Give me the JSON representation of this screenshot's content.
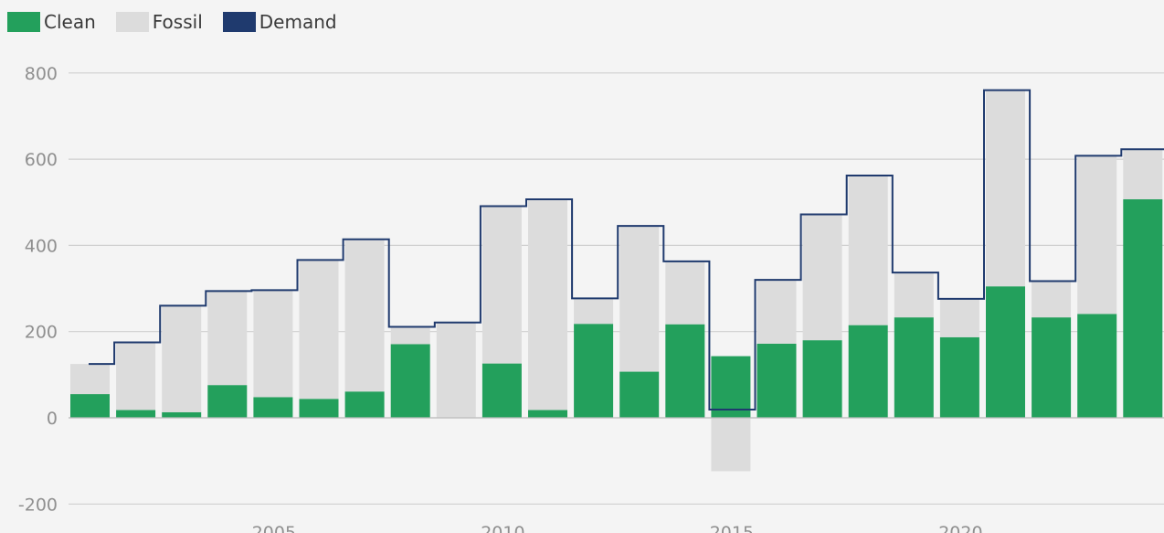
{
  "chart_data": {
    "type": "bar",
    "legend": [
      {
        "key": "clean",
        "label": "Clean",
        "color": "#23a05c"
      },
      {
        "key": "fossil",
        "label": "Fossil",
        "color": "#dcdcdc"
      },
      {
        "key": "demand",
        "label": "Demand",
        "color": "#1f3a6e"
      }
    ],
    "years": [
      2001,
      2002,
      2003,
      2004,
      2005,
      2006,
      2007,
      2008,
      2009,
      2010,
      2011,
      2012,
      2013,
      2014,
      2015,
      2016,
      2017,
      2018,
      2019,
      2020,
      2021,
      2022,
      2023,
      2024
    ],
    "series": [
      {
        "name": "Clean",
        "values": [
          55,
          18,
          13,
          76,
          48,
          44,
          61,
          171,
          0,
          126,
          18,
          218,
          107,
          217,
          143,
          172,
          180,
          215,
          233,
          187,
          305,
          233,
          241,
          507
        ]
      },
      {
        "name": "Fossil",
        "values": [
          70,
          157,
          247,
          218,
          248,
          322,
          353,
          40,
          221,
          365,
          489,
          59,
          338,
          146,
          -124,
          148,
          292,
          347,
          104,
          89,
          455,
          84,
          367,
          116
        ]
      },
      {
        "name": "Demand",
        "values": [
          125,
          175,
          260,
          294,
          296,
          366,
          414,
          211,
          221,
          491,
          507,
          277,
          445,
          363,
          19,
          320,
          472,
          562,
          337,
          276,
          760,
          317,
          608,
          623
        ]
      }
    ],
    "y_ticks": [
      800,
      600,
      400,
      200,
      0,
      -200
    ],
    "x_ticks": [
      2005,
      2010,
      2015,
      2020
    ],
    "ylim": [
      -200,
      800
    ],
    "grid": "horizontal"
  }
}
